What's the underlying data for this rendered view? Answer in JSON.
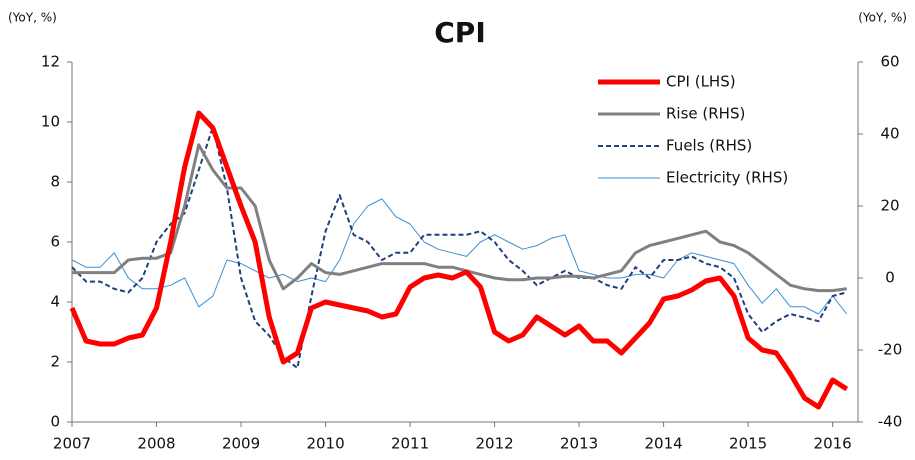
{
  "chart_data": {
    "type": "line",
    "title": "CPI",
    "ylabel": "(YoY, %)",
    "y2label": "(YoY, %)",
    "x": [
      2007,
      2007.167,
      2007.333,
      2007.5,
      2007.667,
      2007.833,
      2008,
      2008.167,
      2008.333,
      2008.5,
      2008.667,
      2008.833,
      2009,
      2009.167,
      2009.333,
      2009.5,
      2009.667,
      2009.833,
      2010,
      2010.167,
      2010.333,
      2010.5,
      2010.667,
      2010.833,
      2011,
      2011.167,
      2011.333,
      2011.5,
      2011.667,
      2011.833,
      2012,
      2012.167,
      2012.333,
      2012.5,
      2012.667,
      2012.833,
      2013,
      2013.167,
      2013.333,
      2013.5,
      2013.667,
      2013.833,
      2014,
      2014.167,
      2014.333,
      2014.5,
      2014.667,
      2014.833,
      2015,
      2015.167,
      2015.333,
      2015.5,
      2015.667,
      2015.833,
      2016,
      2016.167
    ],
    "xlim": [
      2007,
      2016.3
    ],
    "xticks": [
      2007,
      2008,
      2009,
      2010,
      2011,
      2012,
      2013,
      2014,
      2015,
      2016
    ],
    "ylim": [
      0,
      12
    ],
    "yticks": [
      0,
      2,
      4,
      6,
      8,
      10,
      12
    ],
    "y2lim": [
      -40,
      60
    ],
    "y2ticks": [
      -40,
      -20,
      0,
      20,
      40,
      60
    ],
    "legend": "upper right",
    "series": [
      {
        "name": "CPI (LHS)",
        "color": "#ff0000",
        "linewidth": 5,
        "line_style": "solid",
        "values": [
          3.8,
          2.7,
          2.6,
          2.6,
          2.8,
          2.9,
          3.8,
          6.0,
          8.5,
          10.3,
          9.8,
          8.5,
          7.2,
          6.0,
          3.5,
          2.0,
          2.3,
          3.8,
          4.0,
          3.9,
          3.8,
          3.7,
          3.5,
          3.6,
          4.5,
          4.8,
          4.9,
          4.8,
          5.0,
          4.5,
          3.0,
          2.7,
          2.9,
          3.5,
          3.2,
          2.9,
          3.2,
          2.7,
          2.7,
          2.3,
          2.8,
          3.3,
          4.1,
          4.2,
          4.4,
          4.7,
          4.8,
          4.2,
          2.8,
          2.4,
          2.3,
          1.6,
          0.8,
          0.5,
          1.4,
          1.1
        ]
      },
      {
        "name": "Rise (RHS)",
        "color": "#808080",
        "linewidth": 3,
        "line_style": "solid",
        "axis": "y2",
        "values": [
          1.5,
          1.5,
          1.5,
          1.5,
          5,
          5.5,
          5.5,
          7,
          20,
          37,
          30,
          25,
          25,
          20,
          5,
          -3,
          0,
          4,
          1.5,
          1,
          2,
          3,
          4,
          4,
          4,
          4,
          3,
          3,
          2,
          1,
          0,
          -0.5,
          -0.5,
          0,
          0,
          0.5,
          0.5,
          0,
          1,
          2,
          7,
          9,
          10,
          11,
          12,
          13,
          10,
          9,
          7,
          4,
          1,
          -2,
          -3,
          -3.5,
          -3.5,
          -3
        ]
      },
      {
        "name": "Fuels (RHS)",
        "color": "#1f3f7f",
        "linewidth": 2,
        "line_style": "dashed",
        "axis": "y2",
        "values": [
          3,
          -1,
          -1,
          -3,
          -4,
          0,
          10,
          15,
          18,
          30,
          42,
          25,
          0,
          -12,
          -16,
          -22,
          -25,
          -5,
          13,
          23,
          12,
          10,
          5,
          7,
          7,
          12,
          12,
          12,
          12,
          13,
          10,
          5,
          2,
          -2,
          0,
          2,
          0,
          0,
          -2,
          -3,
          3,
          0,
          5,
          5,
          6,
          4,
          3,
          0,
          -10,
          -15,
          -12,
          -10,
          -11,
          -12,
          -5,
          -4
        ]
      },
      {
        "name": "Electricity (RHS)",
        "color": "#3a8fd0",
        "linewidth": 1,
        "line_style": "solid",
        "axis": "y2",
        "values": [
          5,
          3,
          3,
          7,
          0,
          -3,
          -3,
          -2,
          0,
          -8,
          -5,
          5,
          4,
          2,
          0,
          1,
          -1,
          0,
          -1,
          5,
          15,
          20,
          22,
          17,
          15,
          10,
          8,
          7,
          6,
          10,
          12,
          10,
          8,
          9,
          11,
          12,
          2,
          1,
          0,
          0,
          1,
          1,
          0,
          5,
          7,
          6,
          5,
          4,
          -2,
          -7,
          -3,
          -8,
          -8,
          -10,
          -5,
          -10
        ]
      }
    ]
  }
}
